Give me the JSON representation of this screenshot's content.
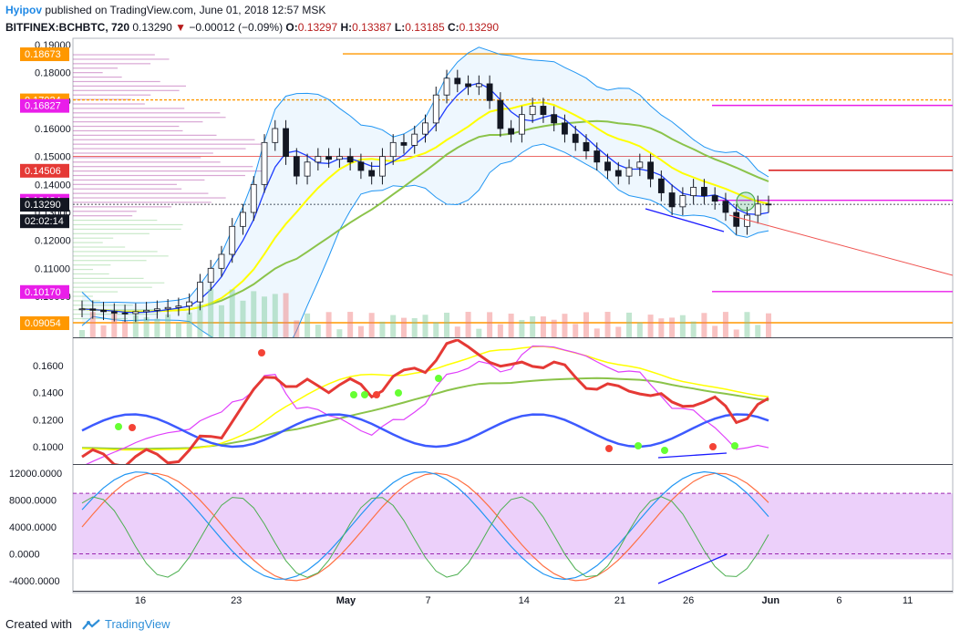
{
  "header": {
    "author": "Hyipov",
    "published_text": "published on TradingView.com, June 01, 2018 12:57 MSK",
    "symbol": "BITFINEX:BCHBTC, 720",
    "last": "0.13290",
    "change_arrow": "▼",
    "change": "−0.00012 (−0.09%)",
    "o_label": "O:",
    "o_value": "0.13297",
    "h_label": "H:",
    "h_value": "0.13387",
    "l_label": "L:",
    "l_value": "0.13185",
    "c_label": "C:",
    "c_value": "0.13290"
  },
  "footer": {
    "created_with": "Created with",
    "brand": "TradingView"
  },
  "colors": {
    "orange": "#ff9800",
    "magenta": "#e91ee9",
    "red": "#e53935",
    "dark": "#131722",
    "up": "#ffffff",
    "down": "#131722",
    "bb": "#2196f3",
    "ma_yellow": "#ffff00",
    "ma_green": "#8bc34a",
    "ma_blue": "#1e3cff",
    "stoch_fill": "#e1bee7"
  },
  "chart_data": [
    {
      "type": "candlestick",
      "title": "BITFINEX:BCHBTC, 720",
      "y_range": [
        0.089,
        0.191
      ],
      "y_ticks": [
        "0.19000",
        "0.18000",
        "0.17000",
        "0.16000",
        "0.15000",
        "0.14000",
        "0.13000",
        "0.12000",
        "0.11000",
        "0.10000"
      ],
      "x_range_days": [
        -6.5,
        36
      ],
      "x_ticks": [
        {
          "day": 2,
          "label": "16"
        },
        {
          "day": 9,
          "label": "23"
        },
        {
          "day": 17,
          "label": "May"
        },
        {
          "day": 23,
          "label": "7"
        },
        {
          "day": 30,
          "label": "14"
        },
        {
          "day": 37,
          "label": "21"
        },
        {
          "day": 42,
          "label": "26"
        },
        {
          "day": 48,
          "label": "Jun"
        },
        {
          "day": 53,
          "label": "6"
        },
        {
          "day": 58,
          "label": "11"
        }
      ],
      "price_labels": [
        {
          "text": "0.18673",
          "value": 0.18673,
          "color": "#ff9800"
        },
        {
          "text": "0.17024",
          "value": 0.17024,
          "color": "#ff9800"
        },
        {
          "text": "0.16827",
          "value": 0.16827,
          "color": "#e91ee9"
        },
        {
          "text": "0.14506",
          "value": 0.14506,
          "color": "#e53935"
        },
        {
          "text": "0.13434",
          "value": 0.13434,
          "color": "#e91ee9"
        },
        {
          "text": "0.13290",
          "value": 0.1329,
          "color": "#131722"
        },
        {
          "text": "02:02:14",
          "value": 0.127,
          "color": "#131722"
        },
        {
          "text": "0.10170",
          "value": 0.1017,
          "color": "#e91ee9"
        },
        {
          "text": "0.09054",
          "value": 0.09054,
          "color": "#ff9800"
        }
      ],
      "horizontal_levels": [
        0.18673,
        0.17024,
        0.16827,
        0.15,
        0.14506,
        0.13434,
        0.1329,
        0.1017,
        0.09054
      ],
      "closes": [
        0.0955,
        0.095,
        0.0945,
        0.094,
        0.0938,
        0.0945,
        0.095,
        0.0955,
        0.096,
        0.0965,
        0.098,
        0.105,
        0.11,
        0.115,
        0.125,
        0.13,
        0.14,
        0.155,
        0.16,
        0.15,
        0.143,
        0.148,
        0.15,
        0.149,
        0.15,
        0.148,
        0.145,
        0.143,
        0.15,
        0.155,
        0.154,
        0.158,
        0.162,
        0.172,
        0.178,
        0.176,
        0.175,
        0.176,
        0.17,
        0.16,
        0.158,
        0.165,
        0.168,
        0.165,
        0.162,
        0.158,
        0.155,
        0.152,
        0.148,
        0.145,
        0.143,
        0.146,
        0.148,
        0.142,
        0.137,
        0.132,
        0.136,
        0.139,
        0.136,
        0.134,
        0.13,
        0.125,
        0.129,
        0.133,
        0.1329
      ]
    },
    {
      "type": "line",
      "title": "Moving averages oscillator",
      "y_ticks": [
        "0.1600",
        "0.1400",
        "0.1200",
        "0.1000"
      ],
      "series": [
        "fast red/green",
        "yellow",
        "blue/cyan",
        "green",
        "magenta"
      ]
    },
    {
      "type": "line",
      "title": "Stochastic",
      "y_ticks": [
        "12000.0000",
        "8000.0000",
        "4000.0000",
        "0.0000",
        "-4000.0000"
      ],
      "band": [
        -800,
        9000
      ],
      "series": [
        "blue",
        "orange",
        "green"
      ]
    }
  ]
}
